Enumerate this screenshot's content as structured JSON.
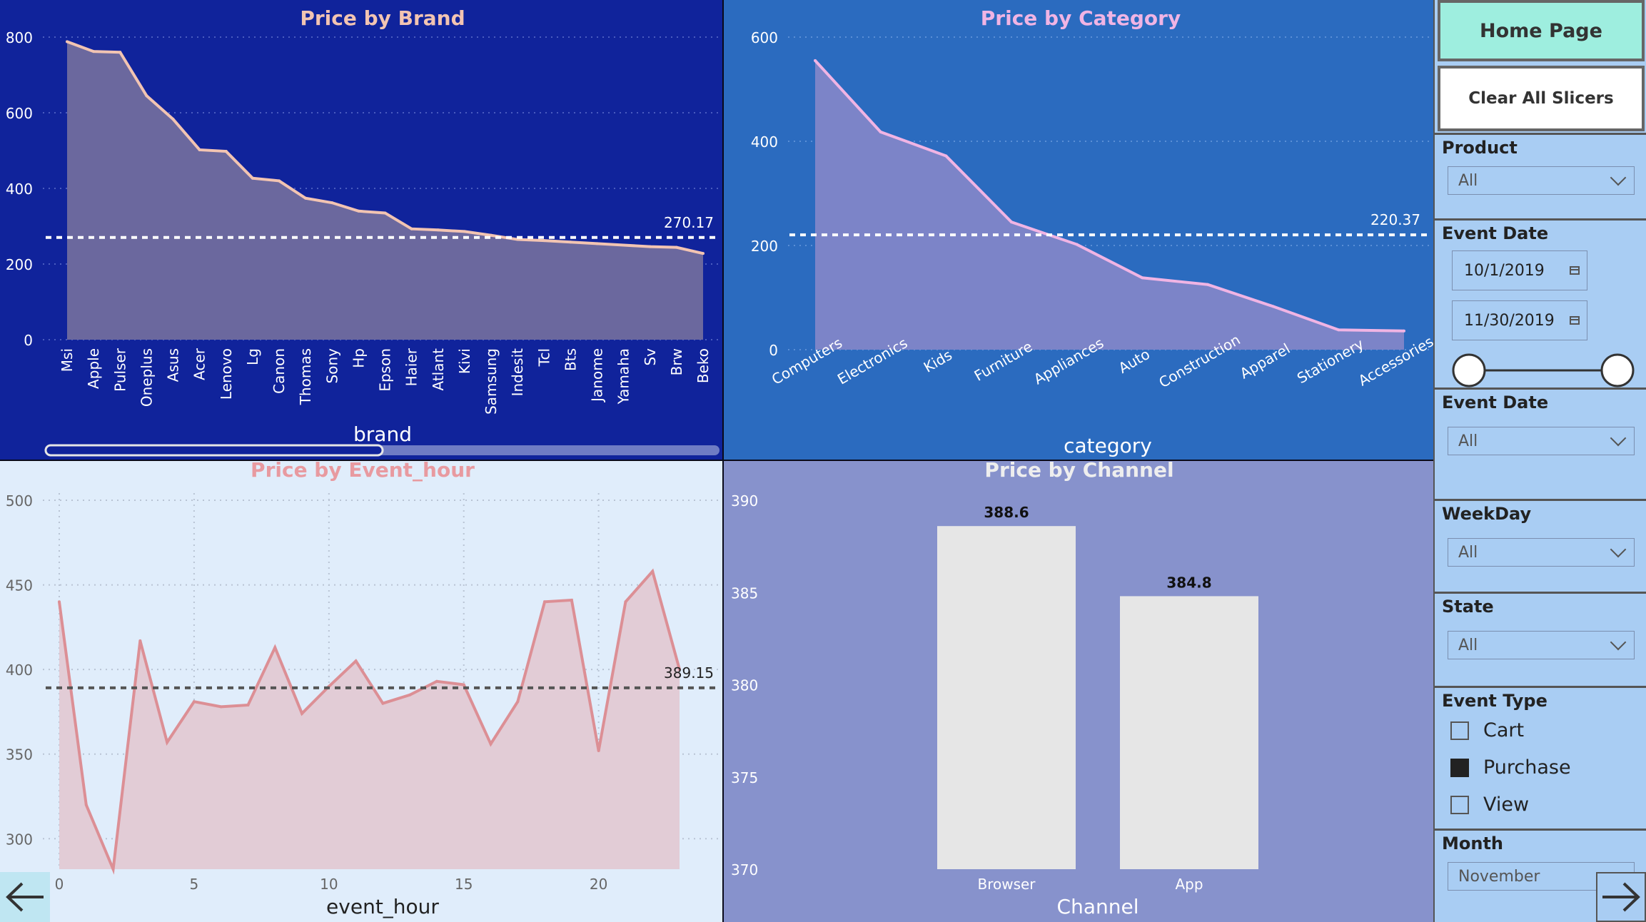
{
  "colors": {
    "brand_panel": "#10239b",
    "category_panel": "#2b6bbf",
    "hour_panel": "#e0edfb",
    "channel_panel": "#8792cc",
    "sidebar": "#a9cdf3",
    "home_button": "#9eeedf"
  },
  "sidebar": {
    "home_label": "Home Page",
    "clear_label": "Clear All Slicers",
    "product": {
      "title": "Product",
      "value": "All"
    },
    "event_date_range": {
      "title": "Event Date",
      "start": "10/1/2019",
      "end": "11/30/2019"
    },
    "event_date": {
      "title": "Event Date",
      "value": "All"
    },
    "weekday": {
      "title": "WeekDay",
      "value": "All"
    },
    "state": {
      "title": "State",
      "value": "All"
    },
    "event_type": {
      "title": "Event Type",
      "options": [
        {
          "label": "Cart",
          "checked": false
        },
        {
          "label": "Purchase",
          "checked": true
        },
        {
          "label": "View",
          "checked": false
        }
      ]
    },
    "month": {
      "title": "Month",
      "value": "November"
    }
  },
  "nav": {
    "back_icon": "arrow-left-icon",
    "forward_icon": "arrow-right-icon"
  },
  "chart_data": [
    {
      "type": "area",
      "title": "Price by Brand",
      "xlabel": "brand",
      "ylabel": "",
      "categories": [
        "Msi",
        "Apple",
        "Pulser",
        "Oneplus",
        "Asus",
        "Acer",
        "Lenovo",
        "Lg",
        "Canon",
        "Thomas",
        "Sony",
        "Hp",
        "Epson",
        "Haier",
        "Atlant",
        "Kivi",
        "Samsung",
        "Indesit",
        "Tcl",
        "Bts",
        "Janome",
        "Yamaha",
        "Sv",
        "Brw",
        "Beko"
      ],
      "values": [
        788,
        762,
        760,
        645,
        583,
        502,
        498,
        427,
        420,
        374,
        362,
        340,
        335,
        293,
        290,
        286,
        276,
        265,
        262,
        258,
        254,
        250,
        246,
        244,
        228
      ],
      "ylim": [
        0,
        800
      ],
      "yticks": [
        0,
        200,
        400,
        600,
        800
      ],
      "average_line": 270.17,
      "average_label": "270.17",
      "colors": {
        "line": "#f2c4b2",
        "fill": "#6b689e",
        "avg": "#ffffff",
        "text": "#ffffff"
      }
    },
    {
      "type": "area",
      "title": "Price by Category",
      "xlabel": "category",
      "ylabel": "",
      "categories": [
        "Computers",
        "Electronics",
        "Kids",
        "Furniture",
        "Appliances",
        "Auto",
        "Construction",
        "Apparel",
        "Stationery",
        "Accessories"
      ],
      "values": [
        555,
        418,
        372,
        245,
        202,
        138,
        125,
        83,
        38,
        36
      ],
      "ylim": [
        0,
        600
      ],
      "yticks": [
        0,
        200,
        400,
        600
      ],
      "average_line": 220.37,
      "average_label": "220.37",
      "colors": {
        "line": "#f0b4e4",
        "fill": "#7c84c8",
        "avg": "#ffffff",
        "text": "#ffffff"
      }
    },
    {
      "type": "area",
      "title": "Price by Event_hour",
      "xlabel": "event_hour",
      "ylabel": "",
      "x": [
        0,
        1,
        2,
        3,
        4,
        5,
        6,
        7,
        8,
        9,
        10,
        11,
        12,
        13,
        14,
        15,
        16,
        17,
        18,
        19,
        20,
        21,
        22,
        23
      ],
      "values": [
        440,
        320,
        282,
        417,
        357,
        381,
        378,
        379,
        413,
        374,
        390,
        405,
        380,
        385,
        393,
        391,
        356,
        381,
        440,
        441,
        352,
        440,
        458,
        400
      ],
      "ylim": [
        282,
        500
      ],
      "yticks": [
        300,
        350,
        400,
        450,
        500
      ],
      "xticks": [
        0,
        5,
        10,
        15,
        20
      ],
      "average_line": 389.15,
      "average_label": "389.15",
      "colors": {
        "line": "#dc8f95",
        "fill": "#e2ccd6",
        "avg": "#555555",
        "text": "#666666"
      }
    },
    {
      "type": "bar",
      "title": "Price by Channel",
      "xlabel": "Channel",
      "ylabel": "",
      "categories": [
        "Browser",
        "App"
      ],
      "values": [
        388.6,
        384.8
      ],
      "data_labels": [
        "388.6",
        "384.8"
      ],
      "ylim": [
        370,
        390
      ],
      "yticks": [
        370,
        375,
        380,
        385,
        390
      ],
      "colors": {
        "bar": "#e6e6e6",
        "text": "#ffffff"
      }
    }
  ]
}
